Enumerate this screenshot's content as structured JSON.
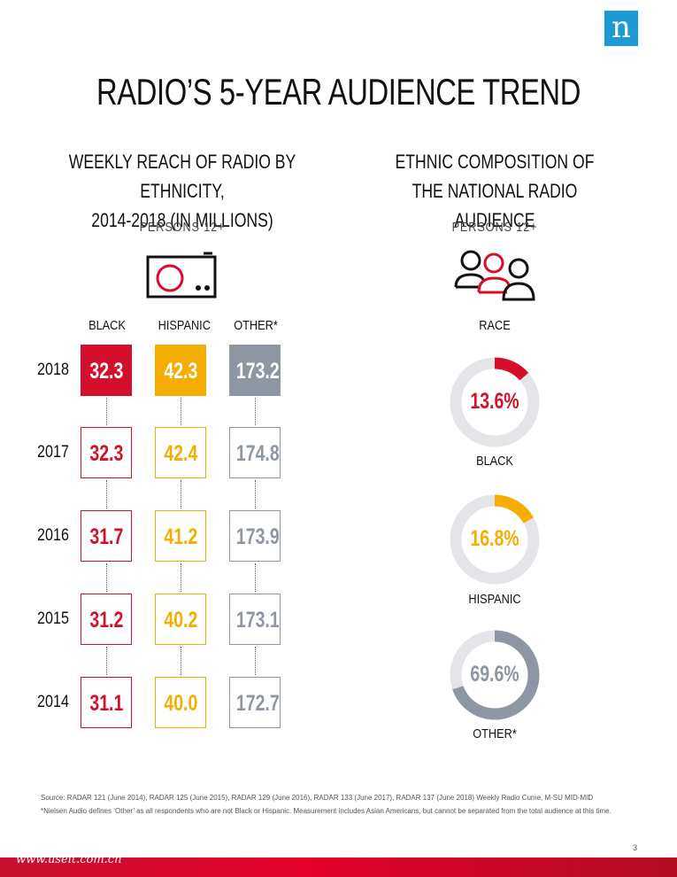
{
  "brand": {
    "logo_letter": "n",
    "logo_color": "#1b9ad6"
  },
  "title": "RADIO’S 5-YEAR AUDIENCE TREND",
  "left": {
    "subtitle_line1": "WEEKLY REACH OF RADIO BY ETHNICITY,",
    "subtitle_line2": "2014-2018 (IN MILLIONS)",
    "persons": "PERSONS 12+",
    "icon": "radio-icon"
  },
  "right": {
    "subtitle_line1": "ETHNIC COMPOSITION OF",
    "subtitle_line2": "THE NATIONAL RADIO AUDIENCE",
    "persons": "PERSONS 12+",
    "icon": "people-group-icon",
    "race_label": "RACE"
  },
  "colors": {
    "black": "#d50f2b",
    "hispanic": "#f5ad00",
    "other": "#8e96a3",
    "track": "#e4e5e8"
  },
  "chart_data": [
    {
      "type": "table",
      "columns": [
        "BLACK",
        "HISPANIC",
        "OTHER*"
      ],
      "rows": [
        {
          "year": "2018",
          "values": [
            "32.3",
            "42.3",
            "173.2"
          ]
        },
        {
          "year": "2017",
          "values": [
            "32.3",
            "42.4",
            "174.8"
          ]
        },
        {
          "year": "2016",
          "values": [
            "31.7",
            "41.2",
            "173.9"
          ]
        },
        {
          "year": "2015",
          "values": [
            "31.2",
            "40.2",
            "173.1"
          ]
        },
        {
          "year": "2014",
          "values": [
            "31.1",
            "40.0",
            "172.7"
          ]
        }
      ]
    },
    {
      "type": "pie",
      "slices": [
        {
          "name": "BLACK",
          "value": 13.6,
          "label": "13.6%"
        },
        {
          "name": "HISPANIC",
          "value": 16.8,
          "label": "16.8%"
        },
        {
          "name": "OTHER*",
          "value": 69.6,
          "label": "69.6%"
        }
      ]
    }
  ],
  "footnotes": {
    "source": "Source: RADAR 121 (June 2014), RADAR 125 (June 2015), RADAR 129 (June 2016), RADAR 133 (June 2017), RADAR 137 (June 2018) Weekly Radio Cume, M-SU MID-MID",
    "note": "*Nielsen Audio defines ‘Other’ as all respondents who are not Black or Hispanic. Measurement includes Asian Americans, but cannot be separated from the total audience at this time."
  },
  "page_number": "3",
  "watermark": "www.useit.com.cn"
}
